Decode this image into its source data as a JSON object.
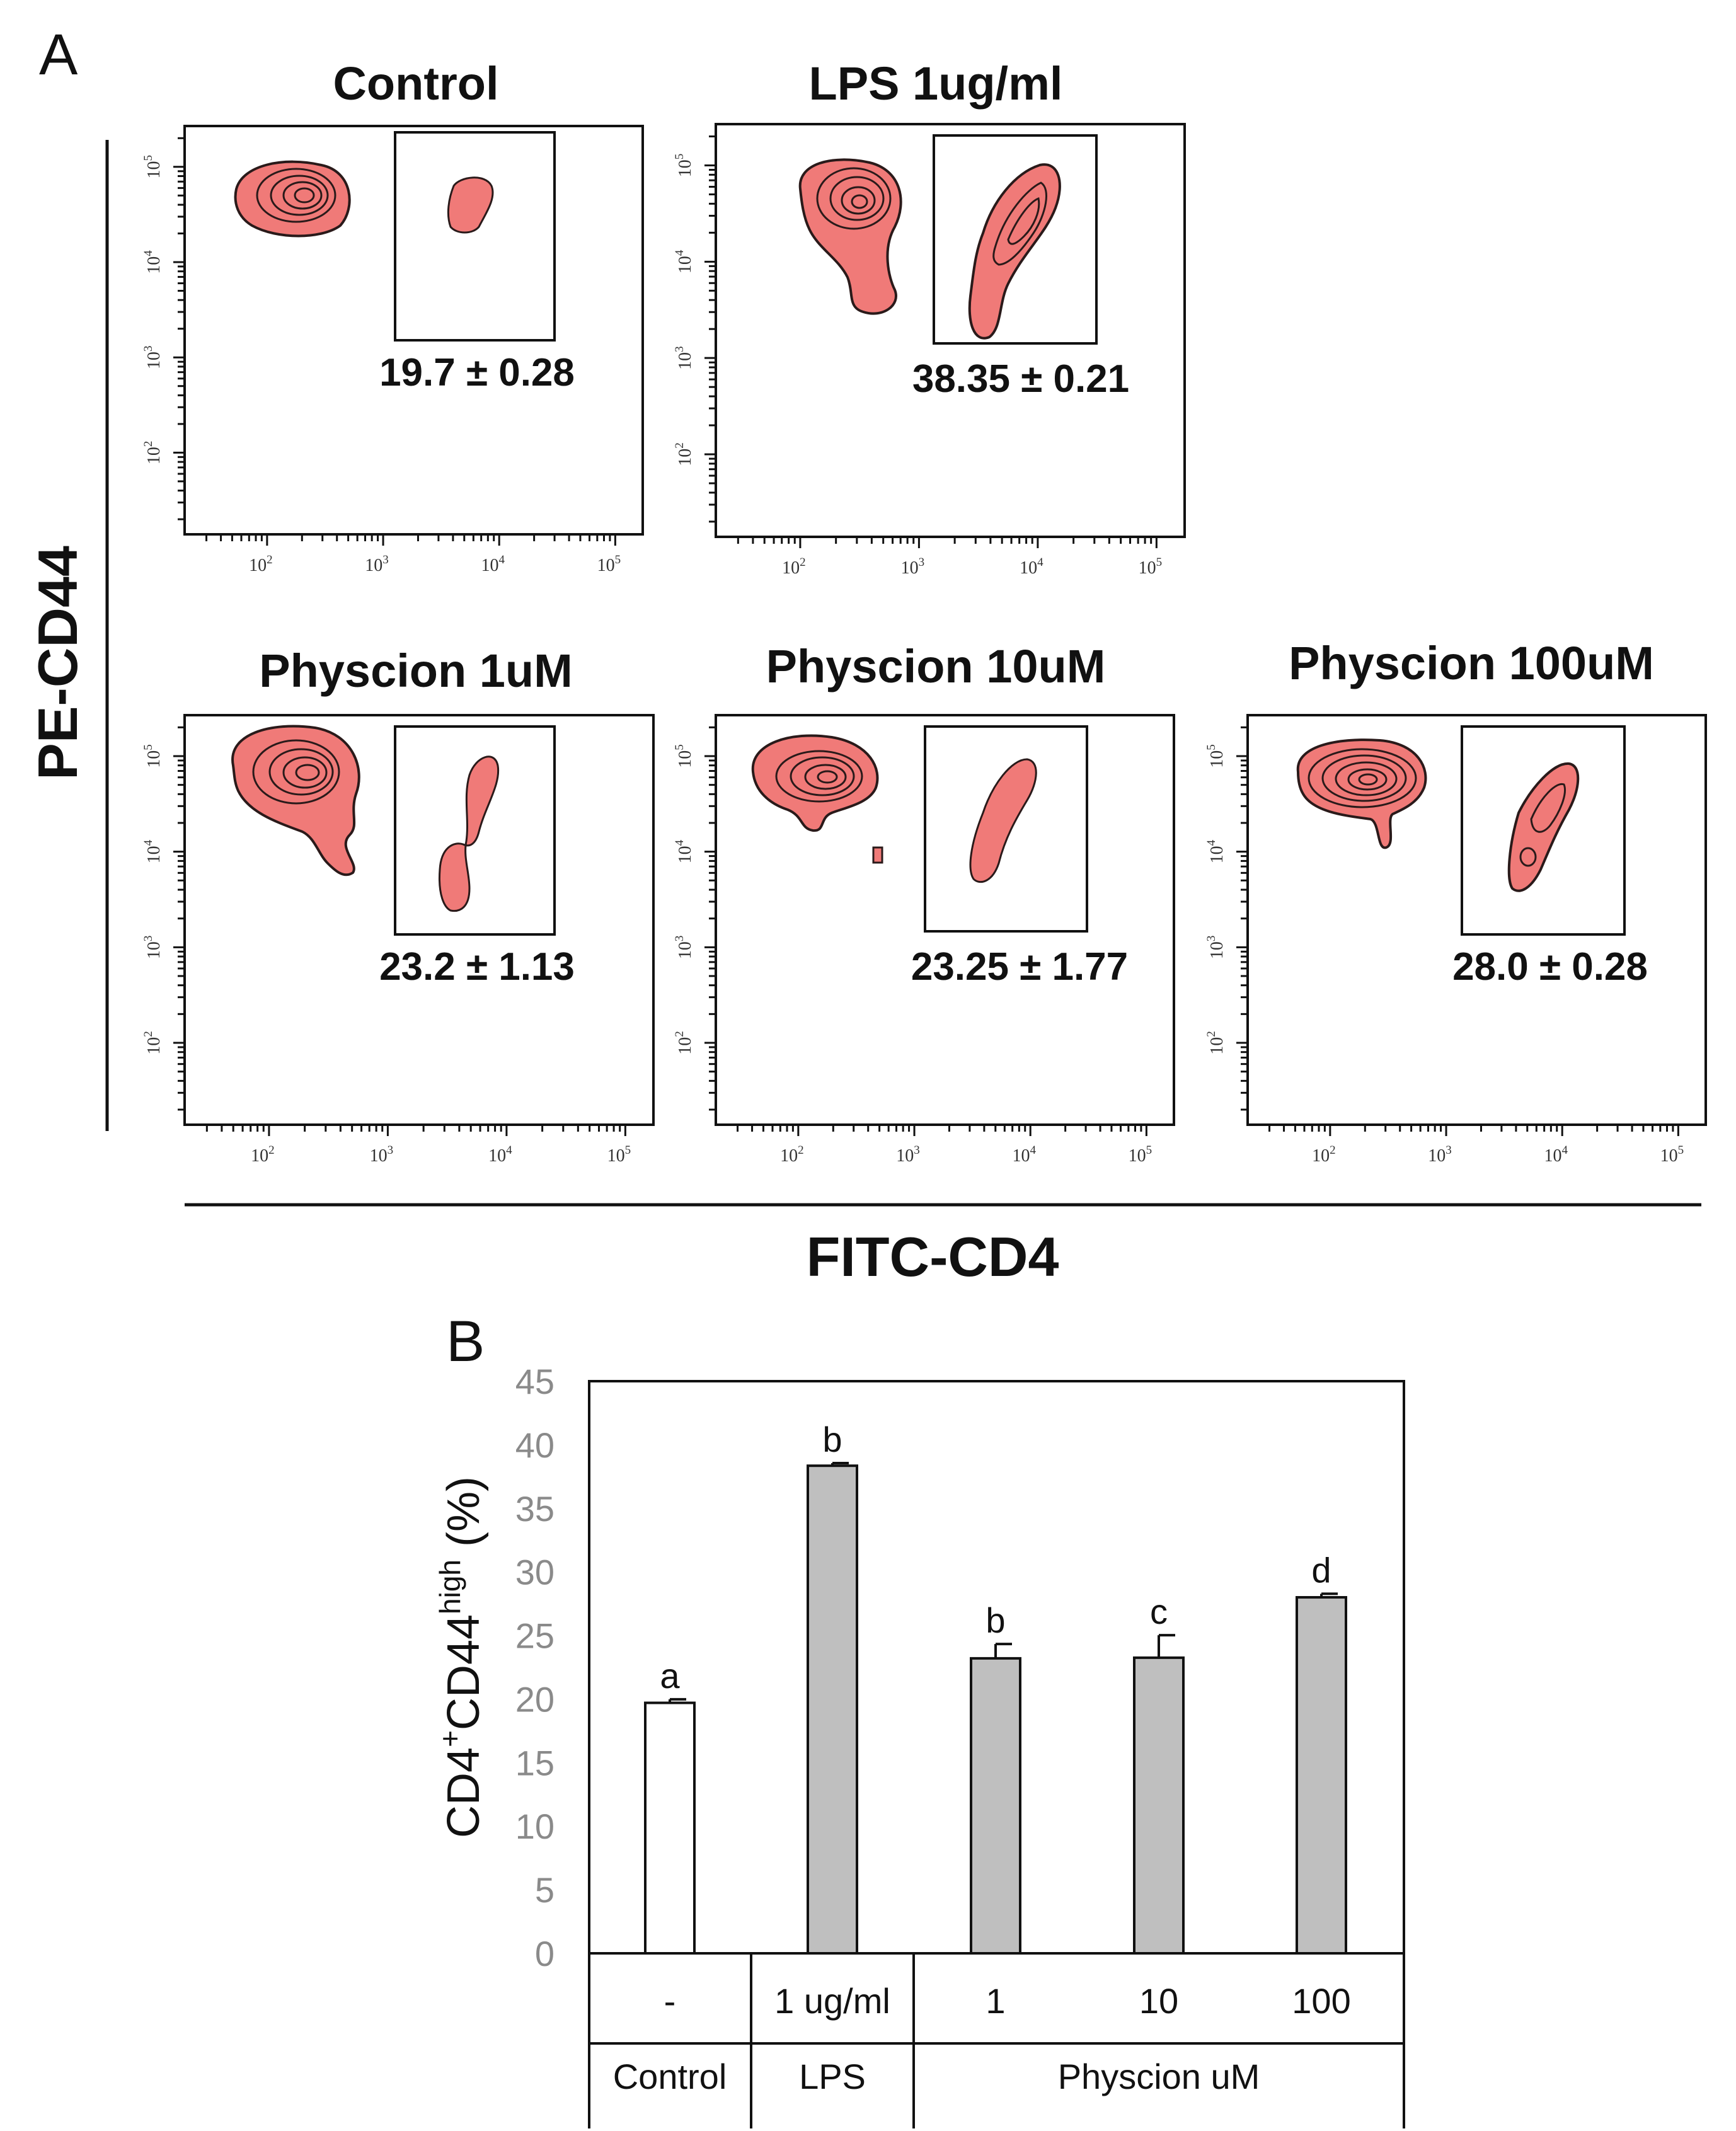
{
  "panel_labels": {
    "a": "A",
    "b": "B"
  },
  "flow_panels": [
    {
      "title": "Control",
      "stat": "19.7 ± 0.28",
      "gate_percent": 19.7
    },
    {
      "title": "LPS 1ug/ml",
      "stat": "38.35 ± 0.21",
      "gate_percent": 38.35
    },
    {
      "title": "Physcion 1uM",
      "stat": "23.2 ± 1.13",
      "gate_percent": 23.2
    },
    {
      "title": "Physcion 10uM",
      "stat": "23.25 ± 1.77",
      "gate_percent": 23.25
    },
    {
      "title": "Physcion 100uM",
      "stat": "28.0 ± 0.28",
      "gate_percent": 28.0
    }
  ],
  "flow_axes": {
    "x_title": "FITC-CD4",
    "y_title": "PE-CD44",
    "x_ticks": [
      {
        "base": "10",
        "exp": "2"
      },
      {
        "base": "10",
        "exp": "3"
      },
      {
        "base": "10",
        "exp": "4"
      },
      {
        "base": "10",
        "exp": "5"
      }
    ],
    "y_ticks": [
      {
        "base": "10",
        "exp": "5"
      },
      {
        "base": "10",
        "exp": "4"
      },
      {
        "base": "10",
        "exp": "3"
      },
      {
        "base": "10",
        "exp": "2"
      }
    ]
  },
  "colors": {
    "contour_fill": "#f07a78",
    "contour_line": "#2a1a1a",
    "bar_control": "#ffffff",
    "bar_treated": "#bfbfbf",
    "bar_stroke": "#111111"
  },
  "chart_data": {
    "type": "bar",
    "title": "",
    "ylabel": {
      "main": "CD4",
      "sup1": "+",
      "mid": "CD44",
      "sup2": "high",
      "unit": " (%)"
    },
    "ylim": [
      0,
      45
    ],
    "yticks": [
      0,
      5,
      10,
      15,
      20,
      25,
      30,
      35,
      40,
      45
    ],
    "categories": [
      "-",
      "1 ug/ml",
      "1",
      "10",
      "100"
    ],
    "values": [
      19.7,
      38.35,
      23.2,
      23.25,
      28.0
    ],
    "errors": [
      0.28,
      0.21,
      1.13,
      1.77,
      0.28
    ],
    "significance": [
      "a",
      "b",
      "b",
      "c",
      "d"
    ],
    "groups": [
      {
        "label": "Control",
        "members": [
          0
        ]
      },
      {
        "label": "LPS",
        "members": [
          1
        ]
      },
      {
        "label": "Physcion uM",
        "members": [
          2,
          3,
          4
        ]
      }
    ]
  }
}
